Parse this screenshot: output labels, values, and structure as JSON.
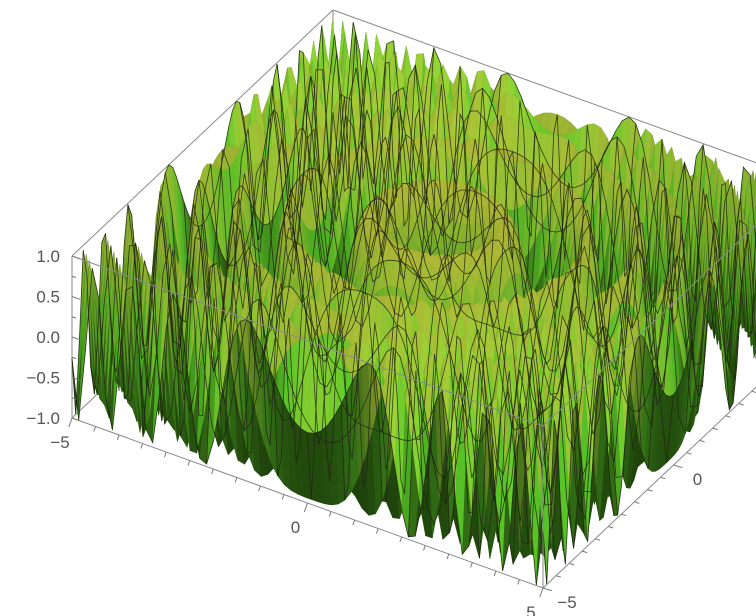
{
  "chart_data": {
    "type": "surface3d",
    "x_range": [
      -5,
      5
    ],
    "y_range": [
      -5,
      5
    ],
    "z_range": [
      -1,
      1
    ],
    "x_ticks": [
      {
        "value": -5,
        "label": "−5"
      },
      {
        "value": 0,
        "label": "0"
      },
      {
        "value": 5,
        "label": "5"
      }
    ],
    "y_ticks": [
      {
        "value": -5,
        "label": "−5"
      },
      {
        "value": 0,
        "label": "0"
      },
      {
        "value": 5,
        "label": "5"
      }
    ],
    "z_ticks": [
      {
        "value": 1,
        "label": "1.0"
      },
      {
        "value": 0.5,
        "label": "0.5"
      },
      {
        "value": 0,
        "label": "0.0"
      },
      {
        "value": -0.5,
        "label": "−0.5"
      },
      {
        "value": -1,
        "label": "−1.0"
      }
    ],
    "surface_function": "sin(x^2 + y^2)",
    "colors": {
      "low": "#1f3d08",
      "mid": "#5fd63a",
      "high": "#e6f04a",
      "mesh": "#1e2410"
    },
    "box": true
  }
}
